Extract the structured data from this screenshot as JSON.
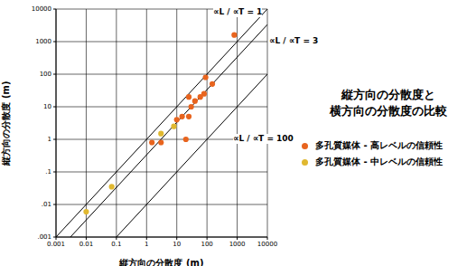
{
  "chart_data": {
    "type": "scatter",
    "title": "縦方向の分散度と\n横方向の分散度の比較",
    "x_label": "縦方向の分散度 (m)",
    "y_label": "縦方向の分散度 (m)",
    "log": true,
    "grid": true,
    "legend": "right",
    "xlim": [
      0.001,
      10000
    ],
    "ylim": [
      0.001,
      10000
    ],
    "xticks": [
      0.001,
      0.01,
      0.1,
      1,
      10,
      100,
      1000,
      10000
    ],
    "yticks": [
      {
        "value": 0.001,
        "label": ".001"
      },
      {
        "value": 0.01,
        "label": ".01"
      },
      {
        "value": 0.1,
        "label": ".1"
      },
      1,
      10,
      100,
      1000,
      10000
    ],
    "series": [
      {
        "name": "多孔質媒体 - 高レベルの信頼性",
        "color": "#e8641e",
        "marker": "circle",
        "x": [
          1.5,
          3,
          20,
          10,
          15,
          25,
          25,
          30,
          40,
          60,
          80,
          90,
          150,
          800
        ],
        "values": [
          0.8,
          0.8,
          1,
          4,
          5,
          5,
          20,
          10,
          15,
          20,
          25,
          80,
          50,
          1600
        ]
      },
      {
        "name": "多孔質媒体 - 中レベルの信頼性",
        "color": "#e0b830",
        "marker": "circle",
        "x": [
          0.01,
          0.07,
          3,
          8
        ],
        "values": [
          0.006,
          0.035,
          1.5,
          2.5
        ]
      }
    ],
    "reference_lines": [
      {
        "label": "∝L / ∝T = 1",
        "ratio": 1,
        "color": "#000000"
      },
      {
        "label": "∝L / ∝T = 3",
        "ratio": 3,
        "color": "#000000"
      },
      {
        "label": "∝L / ∝T = 100",
        "ratio": 100,
        "color": "#000000"
      }
    ]
  }
}
